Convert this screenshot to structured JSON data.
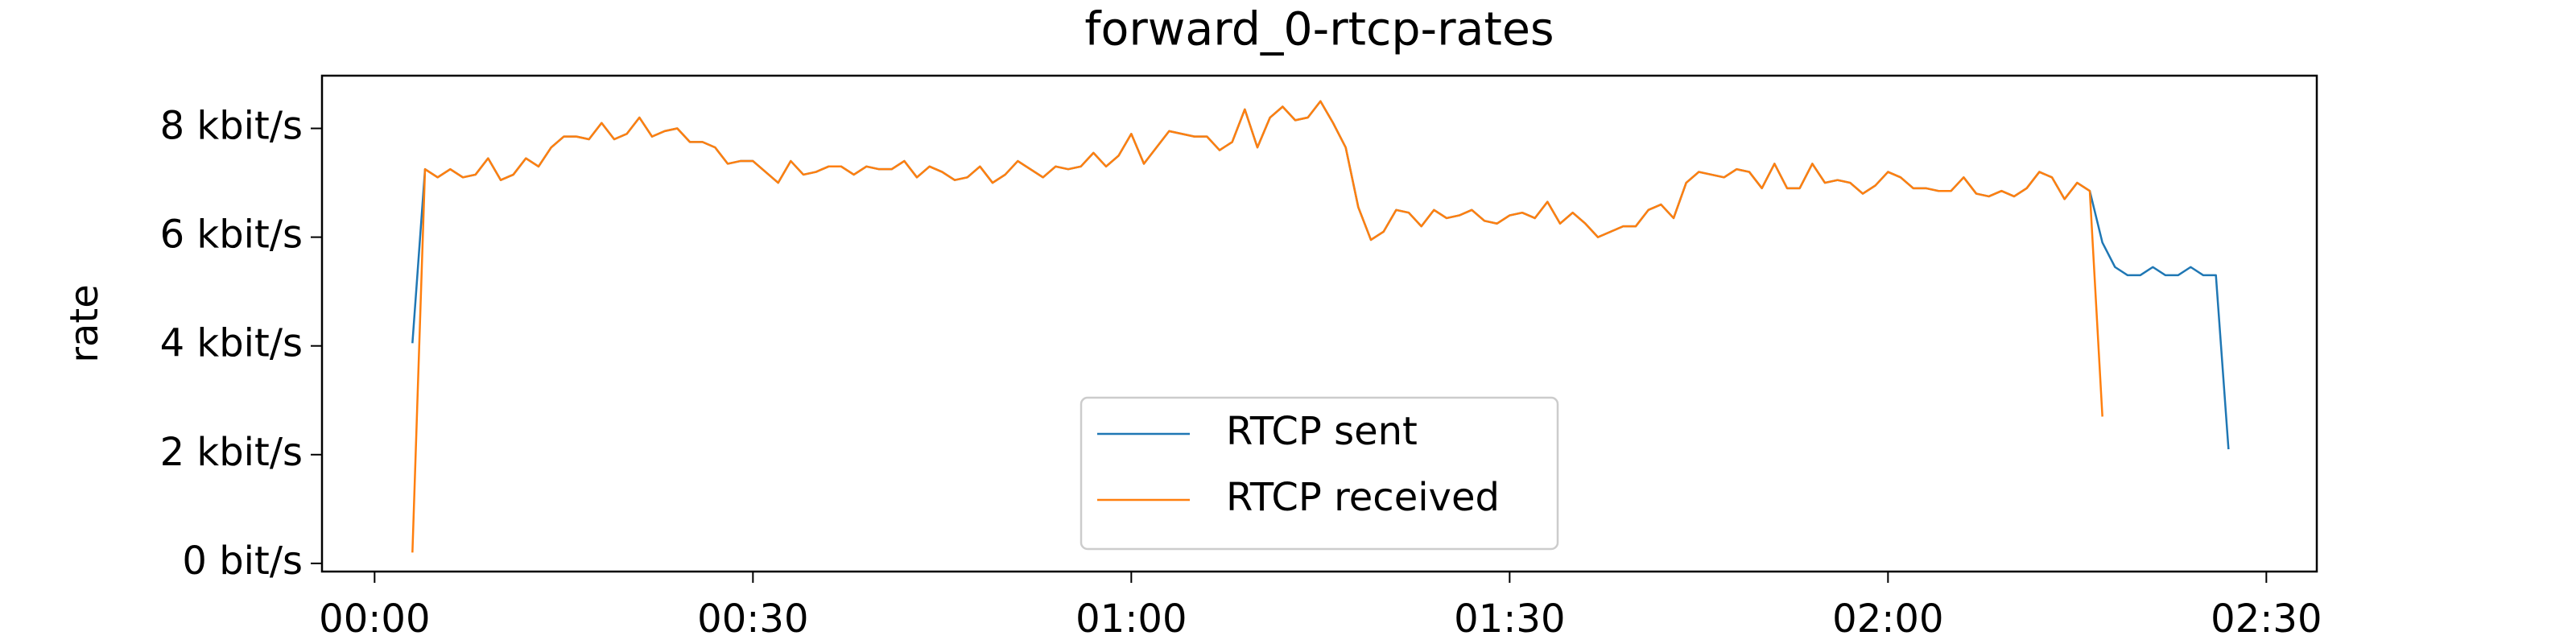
{
  "chart_data": {
    "type": "line",
    "title": "forward_0-rtcp-rates",
    "ylabel": "rate",
    "x": [
      3,
      4,
      5,
      6,
      7,
      8,
      9,
      10,
      11,
      12,
      13,
      14,
      15,
      16,
      17,
      18,
      19,
      20,
      21,
      22,
      23,
      24,
      25,
      26,
      27,
      28,
      29,
      30,
      31,
      32,
      33,
      34,
      35,
      36,
      37,
      38,
      39,
      40,
      41,
      42,
      43,
      44,
      45,
      46,
      47,
      48,
      49,
      50,
      51,
      52,
      53,
      54,
      55,
      56,
      57,
      58,
      59,
      60,
      61,
      62,
      63,
      64,
      65,
      66,
      67,
      68,
      69,
      70,
      71,
      72,
      73,
      74,
      75,
      76,
      77,
      78,
      79,
      80,
      81,
      82,
      83,
      84,
      85,
      86,
      87,
      88,
      89,
      90,
      91,
      92,
      93,
      94,
      95,
      96,
      97,
      98,
      99,
      100,
      101,
      102,
      103,
      104,
      105,
      106,
      107,
      108,
      109,
      110,
      111,
      112,
      113,
      114,
      115,
      116,
      117,
      118,
      119,
      120,
      121,
      122,
      123,
      124,
      125,
      126,
      127,
      128,
      129,
      130,
      131,
      132,
      133,
      134,
      135,
      136,
      137,
      138,
      139,
      140,
      141,
      142,
      143,
      144,
      145,
      146,
      147
    ],
    "series": [
      {
        "name": "RTCP sent",
        "color": "#1f77b4",
        "values": [
          4050,
          7250,
          7100,
          7250,
          7100,
          7150,
          7450,
          7050,
          7150,
          7450,
          7300,
          7650,
          7850,
          7850,
          7800,
          8100,
          7800,
          7900,
          8200,
          7850,
          7950,
          8000,
          7750,
          7750,
          7650,
          7350,
          7400,
          7400,
          7200,
          7000,
          7400,
          7150,
          7200,
          7300,
          7300,
          7150,
          7300,
          7250,
          7250,
          7400,
          7100,
          7300,
          7200,
          7050,
          7100,
          7300,
          7000,
          7150,
          7400,
          7250,
          7100,
          7300,
          7250,
          7300,
          7550,
          7300,
          7500,
          7900,
          7350,
          7650,
          7950,
          7900,
          7850,
          7850,
          7600,
          7750,
          8350,
          7650,
          8200,
          8400,
          8150,
          8200,
          8500,
          8100,
          7650,
          6550,
          5950,
          6100,
          6500,
          6450,
          6200,
          6500,
          6350,
          6400,
          6500,
          6300,
          6250,
          6400,
          6450,
          6350,
          6650,
          6250,
          6450,
          6250,
          6000,
          6100,
          6200,
          6200,
          6500,
          6600,
          6350,
          7000,
          7200,
          7150,
          7100,
          7250,
          7200,
          6900,
          7350,
          6900,
          6900,
          7350,
          7000,
          7050,
          7000,
          6800,
          6950,
          7200,
          7100,
          6900,
          6900,
          6850,
          6850,
          7100,
          6800,
          6750,
          6850,
          6750,
          6900,
          7200,
          7100,
          6700,
          7000,
          6850,
          5900,
          5450,
          5300,
          5300,
          5450,
          5300,
          5300,
          5450,
          5300,
          5300,
          2100
        ]
      },
      {
        "name": "RTCP received",
        "color": "#ff7f0e",
        "values": [
          200,
          7250,
          7100,
          7250,
          7100,
          7150,
          7450,
          7050,
          7150,
          7450,
          7300,
          7650,
          7850,
          7850,
          7800,
          8100,
          7800,
          7900,
          8200,
          7850,
          7950,
          8000,
          7750,
          7750,
          7650,
          7350,
          7400,
          7400,
          7200,
          7000,
          7400,
          7150,
          7200,
          7300,
          7300,
          7150,
          7300,
          7250,
          7250,
          7400,
          7100,
          7300,
          7200,
          7050,
          7100,
          7300,
          7000,
          7150,
          7400,
          7250,
          7100,
          7300,
          7250,
          7300,
          7550,
          7300,
          7500,
          7900,
          7350,
          7650,
          7950,
          7900,
          7850,
          7850,
          7600,
          7750,
          8350,
          7650,
          8200,
          8400,
          8150,
          8200,
          8500,
          8100,
          7650,
          6550,
          5950,
          6100,
          6500,
          6450,
          6200,
          6500,
          6350,
          6400,
          6500,
          6300,
          6250,
          6400,
          6450,
          6350,
          6650,
          6250,
          6450,
          6250,
          6000,
          6100,
          6200,
          6200,
          6500,
          6600,
          6350,
          7000,
          7200,
          7150,
          7100,
          7250,
          7200,
          6900,
          7350,
          6900,
          6900,
          7350,
          7000,
          7050,
          7000,
          6800,
          6950,
          7200,
          7100,
          6900,
          6900,
          6850,
          6850,
          7100,
          6800,
          6750,
          6850,
          6750,
          6900,
          7200,
          7100,
          6700,
          7000,
          6850,
          2700,
          null,
          null,
          null,
          null,
          null,
          null,
          null,
          null,
          null,
          null
        ]
      }
    ],
    "xlim": [
      -4.17,
      154.0
    ],
    "xticks": [
      {
        "value": 0,
        "label": "00:00"
      },
      {
        "value": 30,
        "label": "00:30"
      },
      {
        "value": 60,
        "label": "01:00"
      },
      {
        "value": 90,
        "label": "01:30"
      },
      {
        "value": 120,
        "label": "02:00"
      },
      {
        "value": 150,
        "label": "02:30"
      }
    ],
    "ylim": [
      -150,
      8970
    ],
    "yticks": [
      {
        "value": 0,
        "label": "0 bit/s"
      },
      {
        "value": 2000,
        "label": "2 kbit/s"
      },
      {
        "value": 4000,
        "label": "4 kbit/s"
      },
      {
        "value": 6000,
        "label": "6 kbit/s"
      },
      {
        "value": 8000,
        "label": "8 kbit/s"
      }
    ],
    "legend": "lower center",
    "grid": false
  }
}
